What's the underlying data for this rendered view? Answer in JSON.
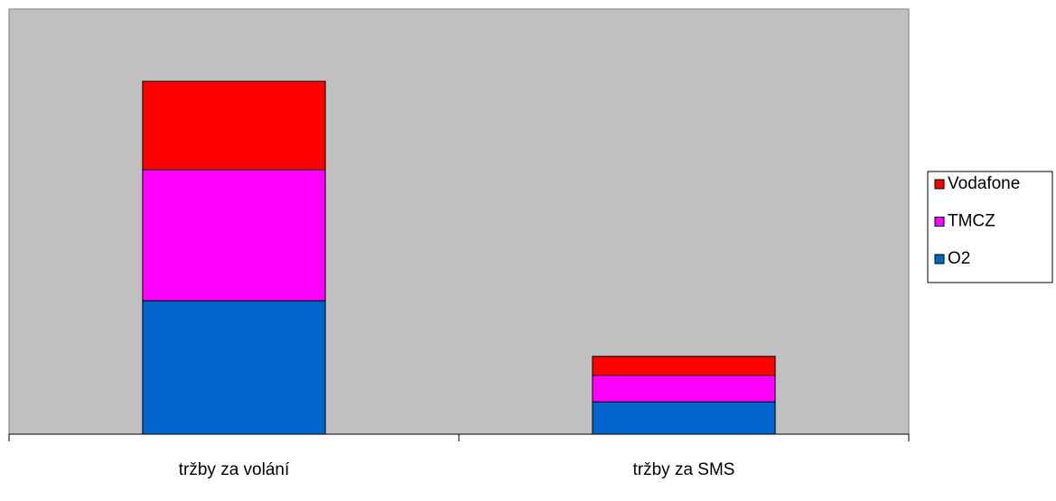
{
  "chart_data": {
    "type": "stacked_bar",
    "categories": [
      "tržby za volání",
      "tržby za SMS"
    ],
    "series": [
      {
        "name": "O2",
        "color": "#0066cc",
        "values": [
          31.4,
          7.6
        ]
      },
      {
        "name": "TMCZ",
        "color": "#ff00ff",
        "values": [
          30.8,
          6.2
        ]
      },
      {
        "name": "Vodafone",
        "color": "#ff0000",
        "values": [
          20.8,
          4.5
        ]
      }
    ],
    "ylim": [
      0,
      100
    ],
    "grid": false,
    "legend": "right",
    "plot_background": "#c0c0c0"
  }
}
